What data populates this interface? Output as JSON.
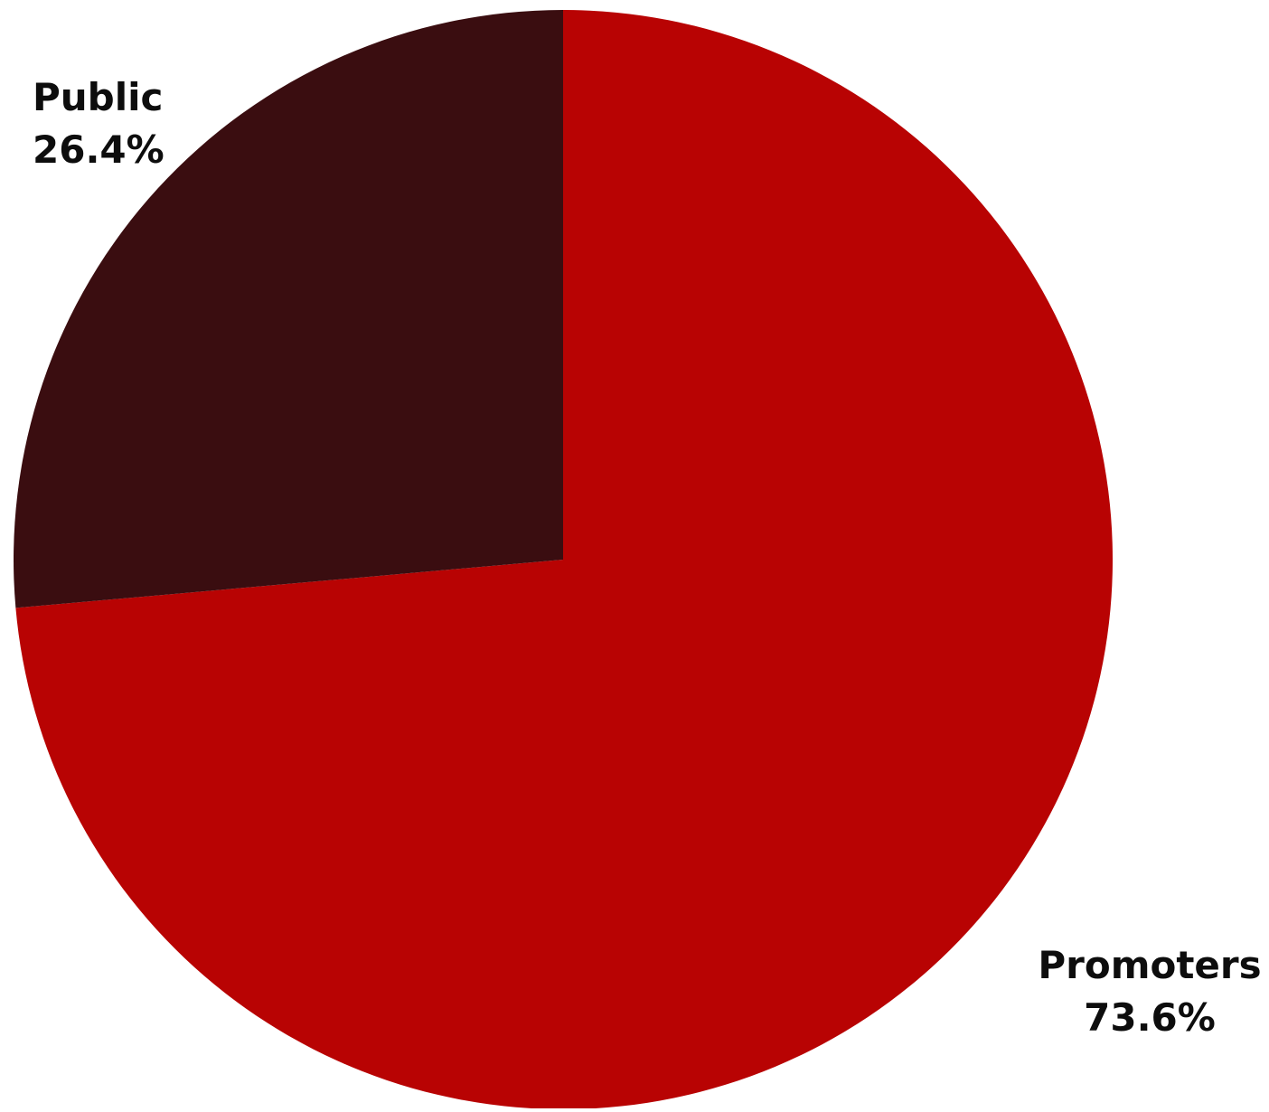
{
  "chart_data": {
    "type": "pie",
    "title": "",
    "slices": [
      {
        "label": "Promoters",
        "value": 73.6,
        "display": "73.6%",
        "color": "#b80303"
      },
      {
        "label": "Public",
        "value": 26.4,
        "display": "26.4%",
        "color": "#3a0d10"
      }
    ],
    "start_angle": "12 o'clock",
    "direction": "clockwise",
    "legend": "none"
  }
}
